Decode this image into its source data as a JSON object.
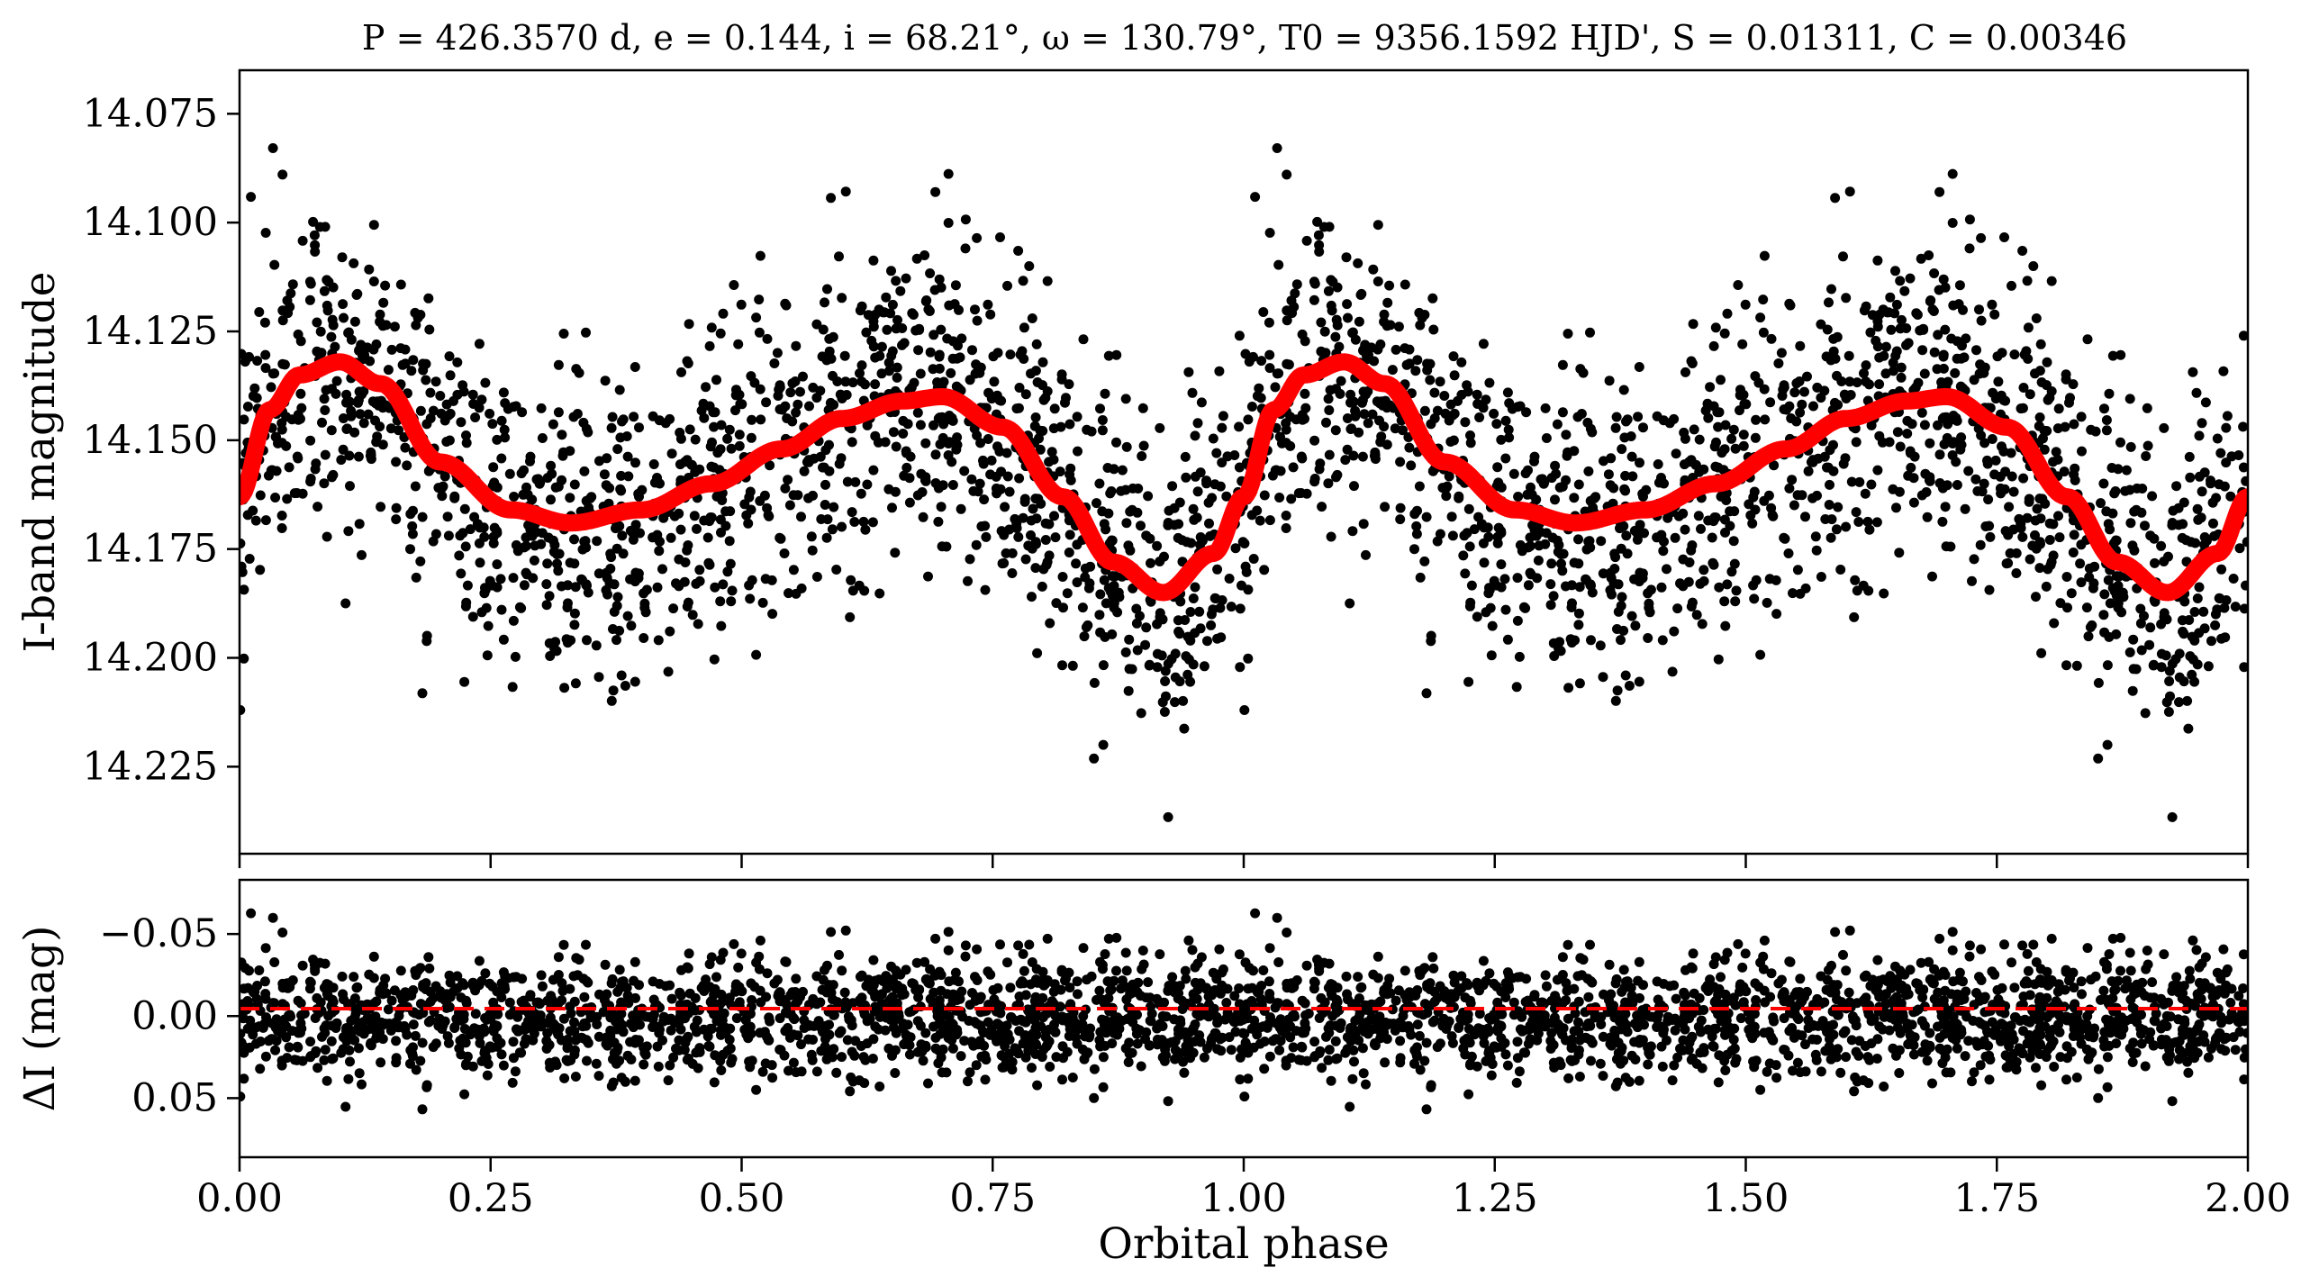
{
  "chart_data": [
    {
      "type": "scatter",
      "title": "P = 426.3570 d, e = 0.144, i = 68.21°, ω = 130.79°, T0 = 9356.1592 HJD', S = 0.01311, C = 0.00346",
      "xlabel": "",
      "ylabel": "I-band magnitude",
      "xlim": [
        0.0,
        2.0
      ],
      "ylim": [
        14.245,
        14.065
      ],
      "y_inverted": true,
      "yticks": [
        14.075,
        14.1,
        14.125,
        14.15,
        14.175,
        14.2,
        14.225
      ],
      "ytick_labels": [
        "14.075",
        "14.100",
        "14.125",
        "14.150",
        "14.175",
        "14.200",
        "14.225"
      ],
      "xticks": [
        0.0,
        0.25,
        0.5,
        0.75,
        1.0,
        1.25,
        1.5,
        1.75,
        2.0
      ],
      "grid": false,
      "series": [
        {
          "kind": "points",
          "color": "#000000",
          "description_of_distribution": "dense black observations scattered around the model with ~0.02 mag rms; phases 1-2 repeat phases 0-1",
          "phase": [
            0.0,
            0.03,
            0.06,
            0.1,
            0.14,
            0.2,
            0.27,
            0.33,
            0.4,
            0.47,
            0.54,
            0.6,
            0.66,
            0.7,
            0.76,
            0.82,
            0.87,
            0.92,
            0.97
          ],
          "magnitude": [
            14.162,
            14.142,
            14.134,
            14.131,
            14.137,
            14.155,
            14.166,
            14.169,
            14.166,
            14.159,
            14.151,
            14.144,
            14.14,
            14.14,
            14.147,
            14.163,
            14.178,
            14.185,
            14.176
          ]
        },
        {
          "kind": "model_curve",
          "color": "#ff0000",
          "phase": [
            0.0,
            0.03,
            0.06,
            0.1,
            0.14,
            0.2,
            0.27,
            0.33,
            0.4,
            0.47,
            0.54,
            0.6,
            0.66,
            0.7,
            0.76,
            0.82,
            0.87,
            0.92,
            0.97,
            1.0
          ],
          "magnitude": [
            14.163,
            14.143,
            14.135,
            14.132,
            14.137,
            14.155,
            14.166,
            14.169,
            14.166,
            14.16,
            14.152,
            14.145,
            14.141,
            14.14,
            14.147,
            14.163,
            14.178,
            14.185,
            14.176,
            14.163
          ]
        }
      ]
    },
    {
      "type": "scatter",
      "title": "",
      "xlabel": "Orbital phase",
      "ylabel": "ΔI (mag)",
      "xlim": [
        0.0,
        2.0
      ],
      "ylim": [
        0.086,
        -0.083
      ],
      "y_inverted": true,
      "yticks": [
        -0.05,
        0.0,
        0.05
      ],
      "ytick_labels": [
        "−0.05",
        "0.00",
        "0.05"
      ],
      "xticks": [
        0.0,
        0.25,
        0.5,
        0.75,
        1.0,
        1.25,
        1.5,
        1.75,
        2.0
      ],
      "xtick_labels": [
        "0.00",
        "0.25",
        "0.50",
        "0.75",
        "1.00",
        "1.25",
        "1.50",
        "1.75",
        "2.00"
      ],
      "grid": false,
      "series": [
        {
          "kind": "residual_points",
          "color": "#000000",
          "description_of_distribution": "residuals scattered symmetrically about zero with ~0.02 mag rms, extremes near ±0.07"
        },
        {
          "kind": "zero_line",
          "color": "#ff0000",
          "style": "dashed",
          "y": 0.0
        }
      ]
    }
  ]
}
